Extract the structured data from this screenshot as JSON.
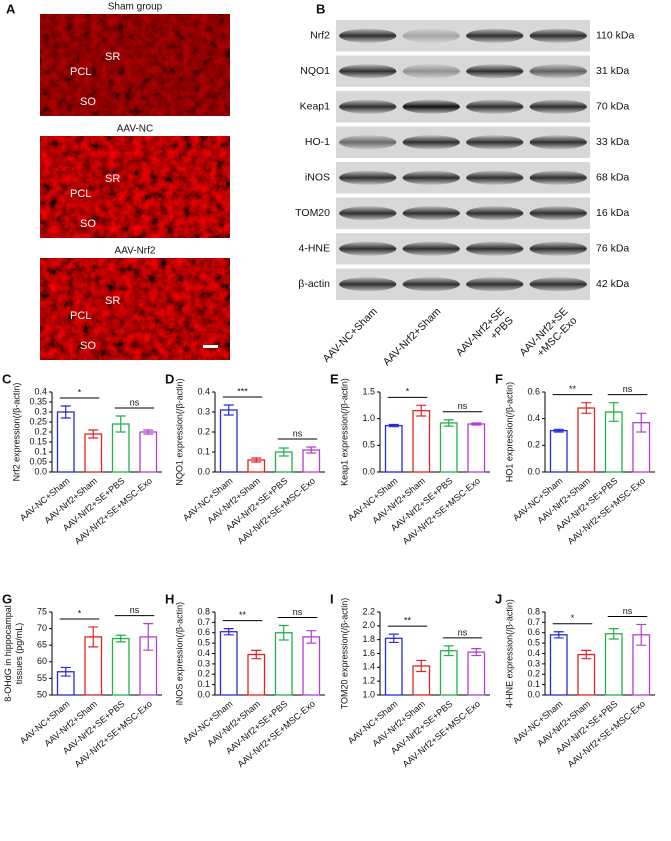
{
  "panels": {
    "A": {
      "letter": "A",
      "images": [
        {
          "title": "Sham group",
          "labels": [
            "SR",
            "PCL",
            "SO"
          ]
        },
        {
          "title": "AAV-NC",
          "labels": [
            "SR",
            "PCL",
            "SO"
          ]
        },
        {
          "title": "AAV-Nrf2",
          "labels": [
            "SR",
            "PCL",
            "SO"
          ]
        }
      ]
    },
    "B": {
      "letter": "B",
      "rows": [
        {
          "protein": "Nrf2",
          "size": "110 kDa"
        },
        {
          "protein": "NQO1",
          "size": "31 kDa"
        },
        {
          "protein": "Keap1",
          "size": "70 kDa"
        },
        {
          "protein": "HO-1",
          "size": "33 kDa"
        },
        {
          "protein": "iNOS",
          "size": "68 kDa"
        },
        {
          "protein": "TOM20",
          "size": "16 kDa"
        },
        {
          "protein": "4-HNE",
          "size": "76 kDa"
        },
        {
          "protein": "β-actin",
          "size": "42 kDa"
        }
      ],
      "columns": [
        [
          "AAV-NC+Sham"
        ],
        [
          "AAV-Nrf2+Sham"
        ],
        [
          "AAV-Nrf2+SE",
          "+PBS"
        ],
        [
          "AAV-Nrf2+SE",
          "+MSC-Exo"
        ]
      ]
    }
  },
  "chart_data": [
    {
      "type": "bar",
      "panel": "C",
      "ylabel": [
        "Nrf2 expression(/β-actin)"
      ],
      "categories": [
        "AAV-NC+Sham",
        "AAV-Nrf2+Sham",
        "AAV-Nrf2+SE+PBS",
        "AAV-Nrf2+SE+MSC-Exo"
      ],
      "values": [
        0.3,
        0.19,
        0.24,
        0.2
      ],
      "errors": [
        0.03,
        0.02,
        0.04,
        0.01
      ],
      "colors": [
        "#2a2ad4",
        "#e02424",
        "#22b04a",
        "#b040d0"
      ],
      "ylim": [
        0,
        0.4
      ],
      "yticks": [
        {
          "value": 0,
          "label": "0.0"
        },
        0.05,
        0.1,
        0.15,
        0.2,
        0.25,
        0.3,
        0.35,
        0.4
      ],
      "annotations": [
        {
          "label": "*",
          "between": [
            "AAV-NC+Sham",
            "AAV-Nrf2+Sham"
          ]
        },
        {
          "label": "ns",
          "between": [
            "AAV-Nrf2+SE+PBS",
            "AAV-Nrf2+SE+MSC-Exo"
          ]
        }
      ]
    },
    {
      "type": "bar",
      "panel": "D",
      "ylabel": [
        "NQO1 expression(/β-actin)"
      ],
      "categories": [
        "AAV-NC+Sham",
        "AAV-Nrf2+Sham",
        "AAV-Nrf2+SE+PBS",
        "AAV-Nrf2+SE+MSC-Exo"
      ],
      "values": [
        0.31,
        0.06,
        0.1,
        0.11
      ],
      "errors": [
        0.025,
        0.01,
        0.02,
        0.015
      ],
      "colors": [
        "#2a2ad4",
        "#e02424",
        "#22b04a",
        "#b040d0"
      ],
      "ylim": [
        0,
        0.4
      ],
      "yticks": [
        {
          "value": 0,
          "label": "0.0"
        },
        0.1,
        0.2,
        0.3,
        0.4
      ],
      "annotations": [
        {
          "label": "***",
          "between": [
            "AAV-NC+Sham",
            "AAV-Nrf2+Sham"
          ]
        },
        {
          "label": "ns",
          "between": [
            "AAV-Nrf2+SE+PBS",
            "AAV-Nrf2+SE+MSC-Exo"
          ]
        }
      ]
    },
    {
      "type": "bar",
      "panel": "E",
      "ylabel": [
        "Keap1 expression(/β-actin)"
      ],
      "categories": [
        "AAV-NC+Sham",
        "AAV-Nrf2+Sham",
        "AAV-Nrf2+SE+PBS",
        "AAV-Nrf2+SE+MSC-Exo"
      ],
      "values": [
        0.87,
        1.15,
        0.92,
        0.9
      ],
      "errors": [
        0.02,
        0.1,
        0.06,
        0.02
      ],
      "colors": [
        "#2a2ad4",
        "#e02424",
        "#22b04a",
        "#b040d0"
      ],
      "ylim": [
        0,
        1.5
      ],
      "yticks": [
        {
          "value": 0,
          "label": "0.0"
        },
        0.5,
        {
          "value": 1,
          "label": "1.0"
        },
        1.5
      ],
      "annotations": [
        {
          "label": "*",
          "between": [
            "AAV-NC+Sham",
            "AAV-Nrf2+Sham"
          ]
        },
        {
          "label": "ns",
          "between": [
            "AAV-Nrf2+SE+PBS",
            "AAV-Nrf2+SE+MSC-Exo"
          ]
        }
      ]
    },
    {
      "type": "bar",
      "panel": "F",
      "ylabel": [
        "HO1 expression(/β-actin)"
      ],
      "categories": [
        "AAV-NC+Sham",
        "AAV-Nrf2+Sham",
        "AAV-Nrf2+SE+PBS",
        "AAV-Nrf2+SE+MSC-Exo"
      ],
      "values": [
        0.31,
        0.48,
        0.45,
        0.37
      ],
      "errors": [
        0.01,
        0.04,
        0.07,
        0.07
      ],
      "colors": [
        "#2a2ad4",
        "#e02424",
        "#22b04a",
        "#b040d0"
      ],
      "ylim": [
        0,
        0.6
      ],
      "yticks": [
        {
          "value": 0,
          "label": "0.0"
        },
        0.2,
        0.4,
        0.6
      ],
      "annotations": [
        {
          "label": "**",
          "between": [
            "AAV-NC+Sham",
            "AAV-Nrf2+Sham"
          ]
        },
        {
          "label": "ns",
          "between": [
            "AAV-Nrf2+SE+PBS",
            "AAV-Nrf2+SE+MSC-Exo"
          ]
        }
      ]
    },
    {
      "type": "bar",
      "panel": "G",
      "ylabel": [
        "8-OHdG in hippocampal",
        "tissues (pg/mL)"
      ],
      "categories": [
        "AAV-NC+Sham",
        "AAV-Nrf2+Sham",
        "AAV-Nrf2+SE+PBS",
        "AAV-Nrf2+SE+MSC-Exo"
      ],
      "values": [
        57,
        67.5,
        67,
        67.5
      ],
      "errors": [
        1.3,
        3,
        1,
        4
      ],
      "colors": [
        "#2a2ad4",
        "#e02424",
        "#22b04a",
        "#b040d0"
      ],
      "ylim": [
        50,
        75
      ],
      "yticks": [
        50,
        55,
        60,
        65,
        70,
        75
      ],
      "annotations": [
        {
          "label": "*",
          "between": [
            "AAV-NC+Sham",
            "AAV-Nrf2+Sham"
          ]
        },
        {
          "label": "ns",
          "between": [
            "AAV-Nrf2+SE+PBS",
            "AAV-Nrf2+SE+MSC-Exo"
          ]
        }
      ]
    },
    {
      "type": "bar",
      "panel": "H",
      "ylabel": [
        "iNOS expression(/β-actin)"
      ],
      "categories": [
        "AAV-NC+Sham",
        "AAV-Nrf2+Sham",
        "AAV-Nrf2+SE+PBS",
        "AAV-Nrf2+SE+MSC-Exo"
      ],
      "values": [
        0.61,
        0.39,
        0.6,
        0.56
      ],
      "errors": [
        0.03,
        0.04,
        0.07,
        0.06
      ],
      "colors": [
        "#2a2ad4",
        "#e02424",
        "#22b04a",
        "#b040d0"
      ],
      "ylim": [
        0,
        0.8
      ],
      "yticks": [
        {
          "value": 0,
          "label": "0.0"
        },
        0.1,
        0.2,
        0.3,
        0.4,
        0.5,
        0.6,
        0.7,
        0.8
      ],
      "annotations": [
        {
          "label": "**",
          "between": [
            "AAV-NC+Sham",
            "AAV-Nrf2+Sham"
          ]
        },
        {
          "label": "ns",
          "between": [
            "AAV-Nrf2+SE+PBS",
            "AAV-Nrf2+SE+MSC-Exo"
          ]
        }
      ]
    },
    {
      "type": "bar",
      "panel": "I",
      "ylabel": [
        "TOM20 expression(/β-actin)"
      ],
      "categories": [
        "AAV-NC+Sham",
        "AAV-Nrf2+Sham",
        "AAV-Nrf2+SE+PBS",
        "AAV-Nrf2+SE+MSC-Exo"
      ],
      "values": [
        1.82,
        1.42,
        1.64,
        1.62
      ],
      "errors": [
        0.06,
        0.08,
        0.07,
        0.05
      ],
      "colors": [
        "#2a2ad4",
        "#e02424",
        "#22b04a",
        "#b040d0"
      ],
      "ylim": [
        1,
        2.2
      ],
      "yticks": [
        {
          "value": 1,
          "label": "1.0"
        },
        1.2,
        1.4,
        1.6,
        1.8,
        {
          "value": 2,
          "label": "2.0"
        },
        2.2
      ],
      "annotations": [
        {
          "label": "**",
          "between": [
            "AAV-NC+Sham",
            "AAV-Nrf2+Sham"
          ]
        },
        {
          "label": "ns",
          "between": [
            "AAV-Nrf2+SE+PBS",
            "AAV-Nrf2+SE+MSC-Exo"
          ]
        }
      ]
    },
    {
      "type": "bar",
      "panel": "J",
      "ylabel": [
        "4-HNE expression(/β-actin)"
      ],
      "categories": [
        "AAV-NC+Sham",
        "AAV-Nrf2+Sham",
        "AAV-Nrf2+SE+PBS",
        "AAV-Nrf2+SE+MSC-Exo"
      ],
      "values": [
        0.58,
        0.39,
        0.59,
        0.58
      ],
      "errors": [
        0.03,
        0.04,
        0.05,
        0.1
      ],
      "colors": [
        "#2a2ad4",
        "#e02424",
        "#22b04a",
        "#b040d0"
      ],
      "ylim": [
        0,
        0.8
      ],
      "yticks": [
        {
          "value": 0,
          "label": "0.0"
        },
        0.1,
        0.2,
        0.3,
        0.4,
        0.5,
        0.6,
        0.7,
        0.8
      ],
      "annotations": [
        {
          "label": "*",
          "between": [
            "AAV-NC+Sham",
            "AAV-Nrf2+Sham"
          ]
        },
        {
          "label": "ns",
          "between": [
            "AAV-Nrf2+SE+PBS",
            "AAV-Nrf2+SE+MSC-Exo"
          ]
        }
      ]
    }
  ]
}
